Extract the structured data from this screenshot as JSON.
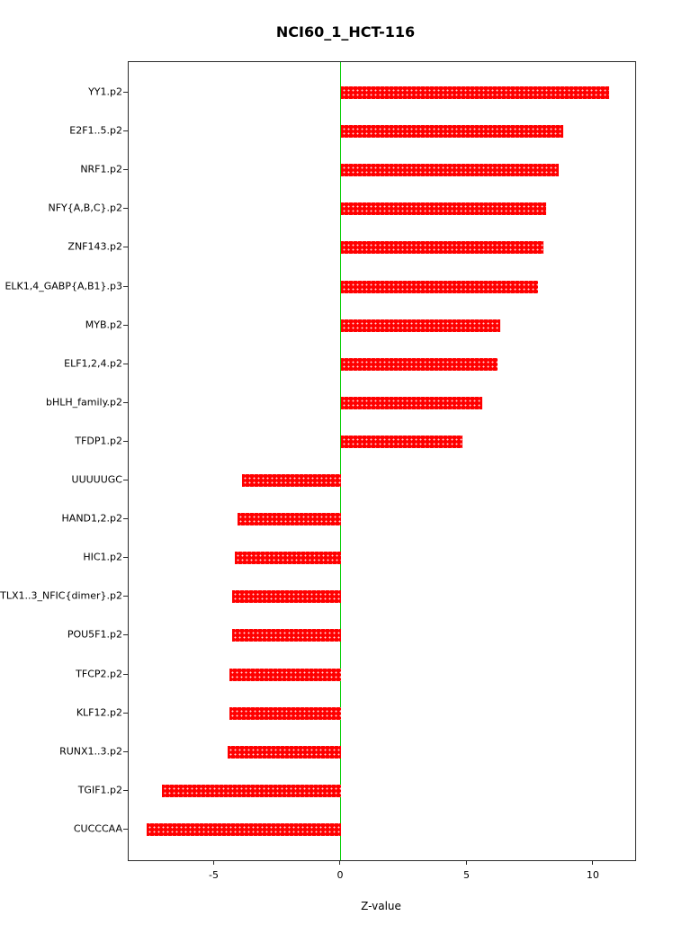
{
  "title": "NCI60_1_HCT-116",
  "chart_data": {
    "type": "bar",
    "orientation": "horizontal",
    "title": "NCI60_1_HCT-116",
    "xlabel": "Z-value",
    "ylabel": "",
    "categories": [
      "YY1.p2",
      "E2F1..5.p2",
      "NRF1.p2",
      "NFY{A,B,C}.p2",
      "ZNF143.p2",
      "ELK1,4_GABP{A,B1}.p3",
      "MYB.p2",
      "ELF1,2,4.p2",
      "bHLH_family.p2",
      "TFDP1.p2",
      "UUUUUGC",
      "HAND1,2.p2",
      "HIC1.p2",
      "TLX1..3_NFIC{dimer}.p2",
      "POU5F1.p2",
      "TFCP2.p2",
      "KLF12.p2",
      "RUNX1..3.p2",
      "TGIF1.p2",
      "CUCCCAA"
    ],
    "values": [
      10.6,
      8.8,
      8.6,
      8.1,
      8.0,
      7.8,
      6.3,
      6.2,
      5.6,
      4.8,
      -3.9,
      -4.1,
      -4.2,
      -4.3,
      -4.3,
      -4.4,
      -4.4,
      -4.5,
      -7.1,
      -7.7
    ],
    "xlim": [
      -8.4,
      11.64
    ],
    "xticks": [
      -5,
      0,
      5,
      10
    ],
    "xtick_labels": [
      "-5",
      "0",
      "5",
      "10"
    ],
    "grid": false,
    "legend_position": "none",
    "bar_color": "#ff0000",
    "zero_line_color": "#00cc00",
    "axis_color": "#2b2b2b"
  }
}
